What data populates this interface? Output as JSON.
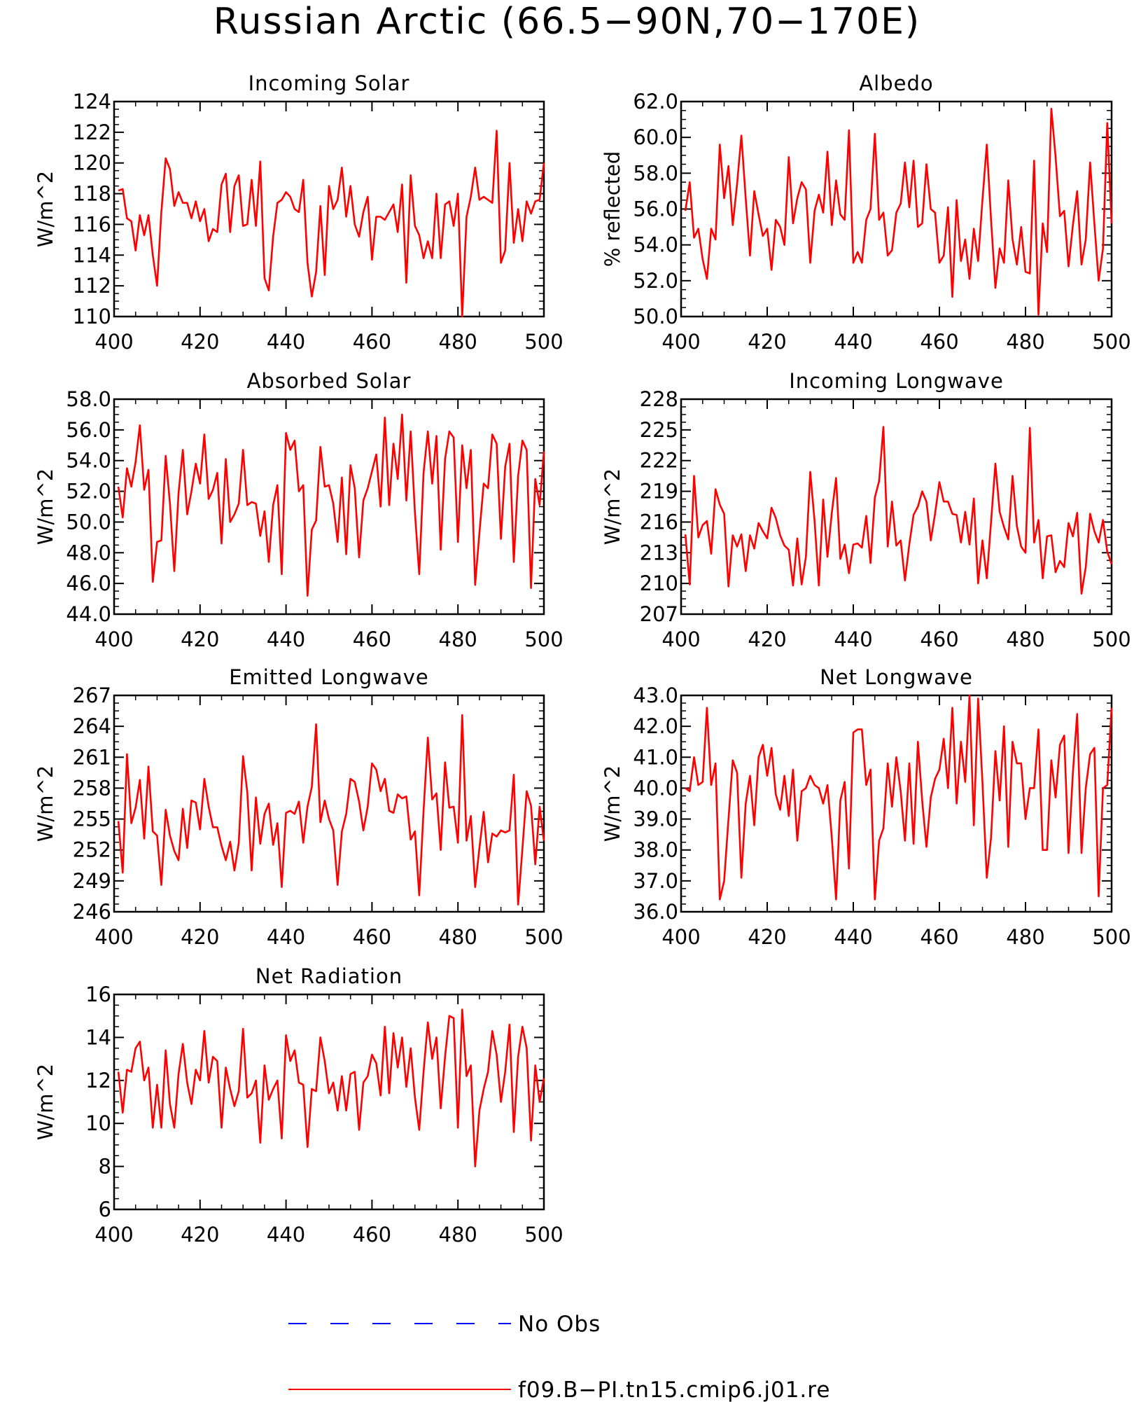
{
  "title": "Russian Arctic (66.5−90N,70−170E)",
  "colors": {
    "model": "#ff0000",
    "obs": "#0000ff",
    "axis": "#000000"
  },
  "legend": [
    {
      "label": "No Obs",
      "color": "#0000ff",
      "style": "dashed"
    },
    {
      "label": "f09.B−PI.tn15.cmip6.j01.re",
      "color": "#ff0000",
      "style": "solid"
    }
  ],
  "chart_data": [
    {
      "type": "line",
      "title": "Incoming Solar",
      "ylabel": "W/m^2",
      "xlim": [
        400,
        500
      ],
      "ylim": [
        110,
        124
      ],
      "xticks": [
        "400",
        "420",
        "440",
        "460",
        "480",
        "500"
      ],
      "yticks": [
        "110",
        "112",
        "114",
        "116",
        "118",
        "120",
        "122",
        "124"
      ],
      "series": [
        {
          "name": "f09.B−PI.tn15.cmip6.j01.re",
          "x_start": 401,
          "values": [
            118.2,
            118.3,
            116.4,
            116.2,
            114.3,
            116.6,
            115.3,
            116.6,
            114.0,
            112.0,
            116.8,
            120.3,
            119.6,
            117.2,
            118.1,
            117.4,
            117.4,
            116.4,
            117.5,
            116.2,
            117.0,
            114.9,
            115.7,
            115.5,
            118.6,
            119.3,
            115.5,
            118.5,
            119.2,
            115.9,
            116.0,
            118.9,
            115.9,
            120.1,
            112.5,
            111.7,
            115.2,
            117.4,
            117.6,
            118.1,
            117.8,
            117.0,
            116.8,
            118.9,
            113.5,
            111.3,
            112.9,
            117.2,
            112.7,
            118.5,
            117.0,
            117.6,
            119.7,
            116.5,
            118.5,
            116.0,
            115.2,
            116.8,
            117.8,
            113.7,
            116.5,
            116.5,
            116.3,
            116.8,
            117.3,
            115.5,
            118.6,
            112.2,
            119.2,
            115.9,
            115.3,
            113.8,
            114.9,
            113.8,
            118.0,
            113.8,
            117.3,
            117.5,
            115.9,
            118.0,
            110.0,
            116.5,
            117.8,
            119.7,
            117.6,
            117.8,
            117.6,
            117.4,
            122.1,
            113.5,
            114.3,
            120.0,
            114.8,
            117.0,
            114.9,
            117.5,
            116.7,
            117.5,
            117.6,
            120.0
          ]
        }
      ]
    },
    {
      "type": "line",
      "title": "Albedo",
      "ylabel": "% reflected",
      "xlim": [
        400,
        500
      ],
      "ylim": [
        50.0,
        62.0
      ],
      "xticks": [
        "400",
        "420",
        "440",
        "460",
        "480",
        "500"
      ],
      "yticks": [
        "50.0",
        "52.0",
        "54.0",
        "56.0",
        "58.0",
        "60.0",
        "62.0"
      ],
      "series": [
        {
          "name": "f09.B−PI.tn15.cmip6.j01.re",
          "x_start": 401,
          "values": [
            55.9,
            57.5,
            54.4,
            54.9,
            53.2,
            52.1,
            54.9,
            54.3,
            59.6,
            56.6,
            58.4,
            55.1,
            57.4,
            60.1,
            56.6,
            53.4,
            57.0,
            55.7,
            54.5,
            54.9,
            52.6,
            55.4,
            55.0,
            54.0,
            58.9,
            55.2,
            56.6,
            57.5,
            57.1,
            53.0,
            55.9,
            56.8,
            55.8,
            59.2,
            55.1,
            57.6,
            55.7,
            55.4,
            60.4,
            53.0,
            53.6,
            53.0,
            55.4,
            56.0,
            60.2,
            55.4,
            55.8,
            53.4,
            53.7,
            55.8,
            56.3,
            58.6,
            56.1,
            58.7,
            55.0,
            55.2,
            58.5,
            56.0,
            55.8,
            53.0,
            53.4,
            56.1,
            51.1,
            56.5,
            53.1,
            54.3,
            52.1,
            54.9,
            53.1,
            56.5,
            59.6,
            55.4,
            51.6,
            53.8,
            53.0,
            57.6,
            54.3,
            52.9,
            55.0,
            52.5,
            52.4,
            58.7,
            50.1,
            55.2,
            53.6,
            61.6,
            58.9,
            55.6,
            55.9,
            52.8,
            55.1,
            57.0,
            52.9,
            54.3,
            58.6,
            55.2,
            52.0,
            53.8,
            60.8,
            55.2
          ]
        }
      ]
    },
    {
      "type": "line",
      "title": "Absorbed Solar",
      "ylabel": "W/m^2",
      "xlim": [
        400,
        500
      ],
      "ylim": [
        44.0,
        58.0
      ],
      "xticks": [
        "400",
        "420",
        "440",
        "460",
        "480",
        "500"
      ],
      "yticks": [
        "44.0",
        "46.0",
        "48.0",
        "50.0",
        "52.0",
        "54.0",
        "56.0",
        "58.0"
      ],
      "series": [
        {
          "name": "f09.B−PI.tn15.cmip6.j01.re",
          "x_start": 401,
          "values": [
            52.3,
            50.3,
            53.5,
            52.3,
            53.9,
            56.3,
            52.1,
            53.4,
            46.1,
            48.7,
            48.8,
            54.3,
            51.2,
            46.8,
            51.9,
            54.7,
            50.5,
            52.0,
            53.8,
            52.5,
            55.7,
            51.5,
            52.1,
            53.2,
            48.6,
            54.1,
            50.0,
            50.5,
            51.2,
            54.7,
            51.1,
            51.3,
            51.2,
            49.1,
            50.7,
            47.4,
            51.1,
            52.4,
            46.6,
            55.8,
            54.7,
            55.3,
            52.0,
            52.4,
            45.2,
            49.5,
            50.1,
            54.9,
            52.3,
            52.4,
            51.2,
            48.7,
            52.9,
            47.9,
            53.7,
            52.2,
            47.7,
            51.4,
            52.2,
            53.3,
            54.4,
            51.0,
            56.8,
            51.1,
            55.1,
            52.8,
            57.0,
            51.4,
            55.9,
            50.6,
            46.6,
            53.2,
            55.9,
            52.5,
            55.6,
            48.2,
            54.1,
            55.9,
            55.5,
            48.7,
            55.0,
            52.2,
            54.7,
            45.9,
            49.3,
            52.5,
            52.2,
            55.7,
            55.1,
            48.9,
            53.6,
            55.1,
            47.4,
            53.0,
            55.3,
            54.7,
            45.7,
            52.8,
            51.1,
            54.6
          ]
        }
      ]
    },
    {
      "type": "line",
      "title": "Incoming Longwave",
      "ylabel": "W/m^2",
      "xlim": [
        400,
        500
      ],
      "ylim": [
        207,
        228
      ],
      "xticks": [
        "400",
        "420",
        "440",
        "460",
        "480",
        "500"
      ],
      "yticks": [
        "207",
        "210",
        "213",
        "216",
        "219",
        "222",
        "225",
        "228"
      ],
      "series": [
        {
          "name": "f09.B−PI.tn15.cmip6.j01.re",
          "x_start": 401,
          "values": [
            214.8,
            209.9,
            220.5,
            214.5,
            215.7,
            216.1,
            212.9,
            219.2,
            217.7,
            216.8,
            209.7,
            214.7,
            213.6,
            214.8,
            211.2,
            214.7,
            213.4,
            215.9,
            215.1,
            214.4,
            217.4,
            216.4,
            214.7,
            213.7,
            213.3,
            209.8,
            214.4,
            209.9,
            212.6,
            220.9,
            216.1,
            209.8,
            218.2,
            212.6,
            216.9,
            220.3,
            212.4,
            213.8,
            211.0,
            213.8,
            213.9,
            213.5,
            216.6,
            212.0,
            218.4,
            220.0,
            225.3,
            213.6,
            218.0,
            213.7,
            214.2,
            210.3,
            213.8,
            216.7,
            217.5,
            219.0,
            218.0,
            214.2,
            216.8,
            219.9,
            218.0,
            218.0,
            216.8,
            216.7,
            214.0,
            217.0,
            213.8,
            218.3,
            210.0,
            214.2,
            210.5,
            216.0,
            221.7,
            217.0,
            215.5,
            214.3,
            220.5,
            215.6,
            213.6,
            213.0,
            225.2,
            214.0,
            216.2,
            210.5,
            214.6,
            214.7,
            211.1,
            212.2,
            211.6,
            215.9,
            214.6,
            216.9,
            209.0,
            211.6,
            216.8,
            215.1,
            214.0,
            216.2,
            213.1,
            211.9
          ]
        }
      ]
    },
    {
      "type": "line",
      "title": "Emitted Longwave",
      "ylabel": "W/m^2",
      "xlim": [
        400,
        500
      ],
      "ylim": [
        246,
        267
      ],
      "xticks": [
        "400",
        "420",
        "440",
        "460",
        "480",
        "500"
      ],
      "yticks": [
        "246",
        "249",
        "252",
        "255",
        "258",
        "261",
        "264",
        "267"
      ],
      "series": [
        {
          "name": "f09.B−PI.tn15.cmip6.j01.re",
          "x_start": 401,
          "values": [
            254.8,
            249.8,
            261.3,
            254.6,
            256.1,
            258.8,
            253.1,
            260.1,
            253.8,
            253.4,
            248.6,
            255.9,
            253.4,
            251.9,
            251.0,
            256.0,
            252.2,
            256.8,
            256.6,
            254.0,
            258.9,
            256.2,
            254.2,
            254.2,
            252.4,
            251.0,
            252.8,
            250.0,
            252.7,
            261.1,
            257.6,
            250.0,
            257.1,
            252.6,
            255.5,
            256.5,
            252.5,
            254.6,
            248.4,
            255.6,
            255.8,
            255.5,
            256.7,
            252.7,
            256.2,
            258.1,
            264.2,
            254.7,
            256.8,
            255.0,
            253.9,
            248.6,
            253.8,
            255.5,
            258.9,
            258.6,
            256.7,
            253.9,
            256.2,
            260.4,
            259.8,
            257.7,
            258.9,
            255.8,
            255.6,
            257.4,
            257.0,
            257.2,
            253.0,
            253.8,
            247.6,
            255.8,
            262.9,
            256.9,
            257.5,
            252.0,
            260.5,
            256.1,
            256.2,
            252.7,
            265.1,
            252.9,
            255.3,
            248.4,
            252.2,
            255.7,
            250.8,
            253.6,
            253.3,
            253.9,
            253.7,
            253.9,
            259.3,
            246.7,
            252.1,
            257.7,
            256.3,
            250.6,
            256.2,
            252.9
          ]
        }
      ]
    },
    {
      "type": "line",
      "title": "Net Longwave",
      "ylabel": "W/m^2",
      "xlim": [
        400,
        500
      ],
      "ylim": [
        36.0,
        43.0
      ],
      "xticks": [
        "400",
        "420",
        "440",
        "460",
        "480",
        "500"
      ],
      "yticks": [
        "36.0",
        "37.0",
        "38.0",
        "39.0",
        "40.0",
        "41.0",
        "42.0",
        "43.0"
      ],
      "series": [
        {
          "name": "f09.B−PI.tn15.cmip6.j01.re",
          "x_start": 401,
          "values": [
            40.0,
            39.9,
            41.0,
            40.1,
            40.2,
            42.6,
            40.1,
            40.8,
            36.4,
            37.0,
            39.0,
            40.9,
            40.5,
            37.1,
            39.5,
            40.4,
            38.8,
            41.0,
            41.4,
            40.4,
            41.3,
            39.8,
            39.3,
            40.4,
            39.1,
            40.6,
            38.3,
            39.9,
            40.0,
            40.4,
            40.1,
            40.0,
            39.5,
            40.1,
            38.4,
            36.4,
            39.6,
            40.2,
            37.4,
            41.8,
            41.9,
            41.9,
            40.1,
            40.6,
            36.4,
            38.3,
            38.7,
            40.8,
            39.4,
            41.0,
            39.9,
            38.3,
            40.8,
            38.2,
            41.5,
            39.6,
            38.1,
            39.7,
            40.3,
            40.6,
            41.6,
            40.0,
            42.6,
            39.5,
            41.5,
            40.2,
            43.0,
            38.8,
            42.9,
            40.2,
            37.1,
            38.4,
            41.2,
            39.6,
            42.0,
            38.1,
            41.5,
            40.8,
            40.8,
            39.0,
            40.0,
            40.0,
            41.9,
            38.0,
            38.0,
            40.9,
            39.7,
            41.4,
            41.7,
            37.9,
            40.5,
            42.4,
            37.9,
            40.0,
            41.1,
            41.3,
            36.5,
            40.0,
            40.1,
            42.6
          ]
        }
      ]
    },
    {
      "type": "line",
      "title": "Net Radiation",
      "ylabel": "W/m^2",
      "xlim": [
        400,
        500
      ],
      "ylim": [
        6,
        16
      ],
      "xticks": [
        "400",
        "420",
        "440",
        "460",
        "480",
        "500"
      ],
      "yticks": [
        "6",
        "8",
        "10",
        "12",
        "14",
        "16"
      ],
      "series": [
        {
          "name": "f09.B−PI.tn15.cmip6.j01.re",
          "x_start": 401,
          "values": [
            12.4,
            10.5,
            12.5,
            12.4,
            13.5,
            13.8,
            12.0,
            12.6,
            9.8,
            11.8,
            9.8,
            13.4,
            10.9,
            9.8,
            12.3,
            13.7,
            11.9,
            10.9,
            12.5,
            12.0,
            14.3,
            11.9,
            13.1,
            12.9,
            9.8,
            12.6,
            11.6,
            10.8,
            11.5,
            14.4,
            11.2,
            11.4,
            12.0,
            9.1,
            12.7,
            11.1,
            11.6,
            12.0,
            9.3,
            14.1,
            12.9,
            13.4,
            11.9,
            11.8,
            8.9,
            11.6,
            11.5,
            14.0,
            12.9,
            11.4,
            11.9,
            10.6,
            12.2,
            10.6,
            12.3,
            12.4,
            9.7,
            11.9,
            12.2,
            13.2,
            12.8,
            11.3,
            14.5,
            11.4,
            14.2,
            12.6,
            14.0,
            11.7,
            13.5,
            11.2,
            9.7,
            12.4,
            14.7,
            13.0,
            14.0,
            10.7,
            13.1,
            15.0,
            14.9,
            9.8,
            15.3,
            12.2,
            12.7,
            8.0,
            10.6,
            11.6,
            12.4,
            14.3,
            13.2,
            11.0,
            12.4,
            14.6,
            9.6,
            13.1,
            14.5,
            13.5,
            9.2,
            12.7,
            11.0,
            12.1
          ]
        }
      ]
    }
  ]
}
